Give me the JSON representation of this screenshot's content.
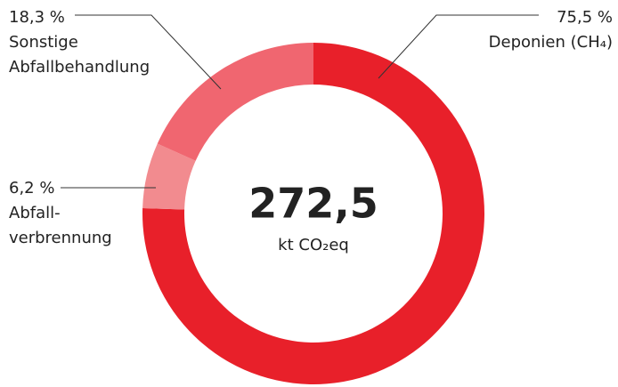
{
  "chart_data": {
    "type": "donut",
    "center_text": "272,5",
    "center_subtext": "kt CO₂eq",
    "labels": [
      [
        "Deponien (CH₄)"
      ],
      [
        "Abfall-",
        "verbrennung"
      ],
      [
        "Sonstige",
        "Abfallbehandlung"
      ]
    ],
    "values": [
      75.5,
      6.2,
      18.3
    ],
    "value_labels": [
      "75,5 %",
      "6,2 %",
      "18,3 %"
    ],
    "colors": [
      "#e8202a",
      "#f28b8f",
      "#f06670"
    ]
  }
}
